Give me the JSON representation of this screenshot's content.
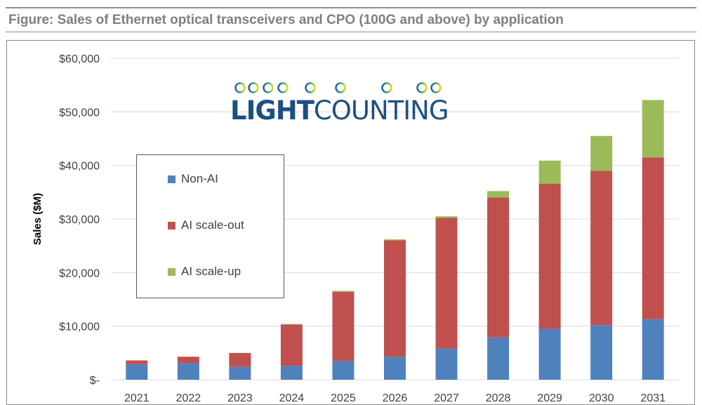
{
  "figure_title": "Figure: Sales of Ethernet optical transceivers and CPO (100G and above) by application",
  "logo": {
    "text_bold": "LIGHT",
    "text_regular": "COUNTING"
  },
  "colors": {
    "non_ai": "#4f81bd",
    "ai_scale_out": "#c0504d",
    "ai_scale_up": "#9bbb59"
  },
  "chart_data": {
    "type": "bar",
    "stacked": true,
    "title": "",
    "xlabel": "",
    "ylabel": "Sales ($M)",
    "ylim": [
      0,
      60000
    ],
    "yticks": [
      0,
      10000,
      20000,
      30000,
      40000,
      50000,
      60000
    ],
    "ytick_labels": [
      "$-",
      "$10,000",
      "$20,000",
      "$30,000",
      "$40,000",
      "$50,000",
      "$60,000"
    ],
    "grid": true,
    "legend_position": "left",
    "categories": [
      "2021",
      "2022",
      "2023",
      "2024",
      "2025",
      "2026",
      "2027",
      "2028",
      "2029",
      "2030",
      "2031"
    ],
    "series": [
      {
        "name": "Non-AI",
        "values": [
          2900,
          3100,
          2400,
          2600,
          3500,
          4300,
          5800,
          7900,
          9500,
          10200,
          11300
        ]
      },
      {
        "name": "AI scale-out",
        "values": [
          700,
          1200,
          2600,
          7700,
          12900,
          21700,
          24400,
          26100,
          27100,
          28800,
          30200
        ]
      },
      {
        "name": "AI scale-up",
        "values": [
          0,
          0,
          0,
          100,
          200,
          200,
          300,
          1200,
          4300,
          6500,
          10700
        ]
      }
    ]
  }
}
